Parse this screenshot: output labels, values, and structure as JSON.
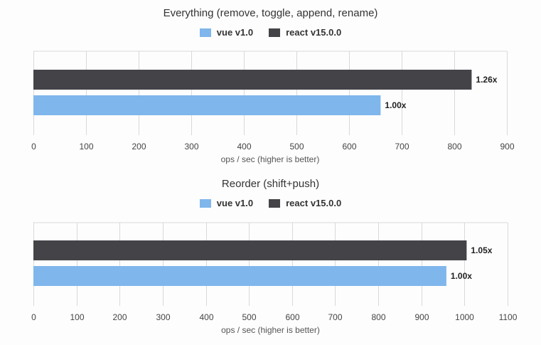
{
  "colors": {
    "vue": "#7fb6ec",
    "react": "#434348",
    "grid": "#d9d9d9"
  },
  "chart_data": [
    {
      "type": "bar",
      "orientation": "horizontal",
      "title": "Everything (remove, toggle, append, rename)",
      "xlabel": "ops / sec (higher is better)",
      "ylabel": "",
      "xlim": [
        0,
        900
      ],
      "xticks": [
        0,
        100,
        200,
        300,
        400,
        500,
        600,
        700,
        800,
        900
      ],
      "legend_position": "top-center",
      "grid": true,
      "series": [
        {
          "name": "vue v1.0",
          "color": "#7fb6ec",
          "values": [
            660
          ],
          "label": "1.00x"
        },
        {
          "name": "react v15.0.0",
          "color": "#434348",
          "values": [
            833
          ],
          "label": "1.26x"
        }
      ]
    },
    {
      "type": "bar",
      "orientation": "horizontal",
      "title": "Reorder (shift+push)",
      "xlabel": "ops / sec (higher is better)",
      "ylabel": "",
      "xlim": [
        0,
        1100
      ],
      "xticks": [
        0,
        100,
        200,
        300,
        400,
        500,
        600,
        700,
        800,
        900,
        1000,
        1100
      ],
      "legend_position": "top-center",
      "grid": true,
      "series": [
        {
          "name": "vue v1.0",
          "color": "#7fb6ec",
          "values": [
            958
          ],
          "label": "1.00x"
        },
        {
          "name": "react v15.0.0",
          "color": "#434348",
          "values": [
            1005
          ],
          "label": "1.05x"
        }
      ]
    }
  ]
}
